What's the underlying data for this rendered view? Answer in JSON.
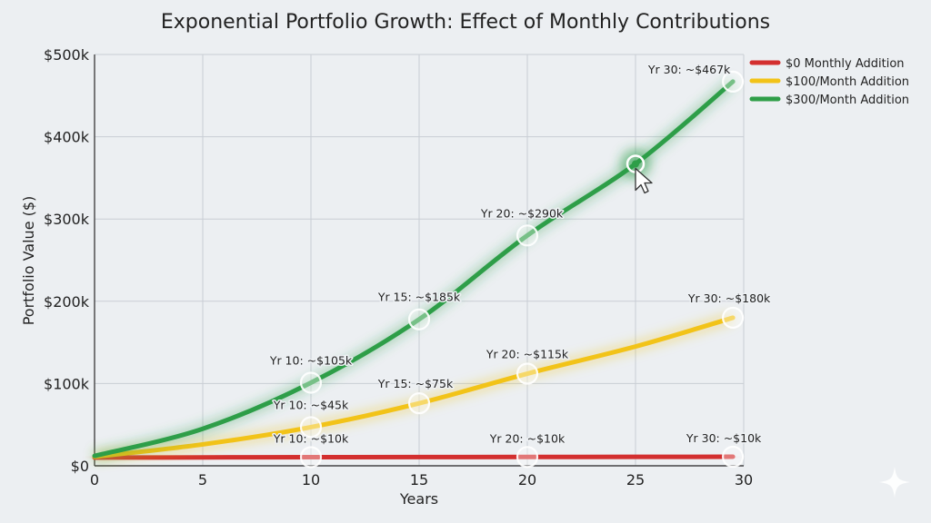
{
  "chart_data": {
    "type": "line",
    "title": "Exponential Portfolio Growth: Effect of Monthly Contributions",
    "xlabel": "Years",
    "ylabel": "Portfolio Value ($)",
    "xlim": [
      0,
      30
    ],
    "ylim": [
      0,
      500000
    ],
    "x_ticks": [
      0,
      5,
      10,
      15,
      20,
      25,
      30
    ],
    "x_tick_labels": [
      "0",
      "5",
      "10",
      "15",
      "20",
      "25",
      "30"
    ],
    "y_ticks": [
      0,
      100000,
      200000,
      300000,
      400000,
      500000
    ],
    "y_tick_labels": [
      "$0",
      "$100k",
      "$200k",
      "$300k",
      "$400k",
      "$500k"
    ],
    "grid": true,
    "legend_position": "top-right",
    "series": [
      {
        "name": "$0 Monthly Addition",
        "color": "#d32f2f",
        "x": [
          0,
          5,
          10,
          15,
          20,
          25,
          29.5
        ],
        "y": [
          10000,
          10200,
          10500,
          10600,
          10700,
          10900,
          11000
        ],
        "markers": [
          {
            "x": 10,
            "y": 10500,
            "label": "Yr 10: ~$10k"
          },
          {
            "x": 20,
            "y": 10700,
            "label": "Yr 20: ~$10k"
          },
          {
            "x": 29.5,
            "y": 11000,
            "label": "Yr 30: ~$10k"
          }
        ]
      },
      {
        "name": "$100/Month Addition",
        "color": "#f2c318",
        "x": [
          0,
          5,
          10,
          15,
          20,
          25,
          29.5
        ],
        "y": [
          11000,
          26000,
          47000,
          76000,
          112000,
          145000,
          180000
        ],
        "markers": [
          {
            "x": 10,
            "y": 47000,
            "label": "Yr 10: ~$45k"
          },
          {
            "x": 15,
            "y": 76000,
            "label": "Yr 15: ~$75k"
          },
          {
            "x": 20,
            "y": 112000,
            "label": "Yr 20: ~$115k"
          },
          {
            "x": 29.5,
            "y": 180000,
            "label": "Yr 30: ~$180k"
          }
        ]
      },
      {
        "name": "$300/Month Addition",
        "color": "#2e9e48",
        "x": [
          0,
          5,
          10,
          15,
          20,
          25,
          29.5
        ],
        "y": [
          12000,
          45000,
          101000,
          178000,
          280000,
          367000,
          467000
        ],
        "markers": [
          {
            "x": 10,
            "y": 101000,
            "label": "Yr 10: ~$105k"
          },
          {
            "x": 15,
            "y": 178000,
            "label": "Yr 15: ~$185k"
          },
          {
            "x": 20,
            "y": 280000,
            "label": "Yr 20: ~$290k"
          },
          {
            "x": 29.5,
            "y": 467000,
            "label": "Yr 30: ~$467k"
          }
        ]
      }
    ],
    "highlight_point": {
      "series": "$300/Month Addition",
      "x": 25,
      "y": 367000
    }
  }
}
